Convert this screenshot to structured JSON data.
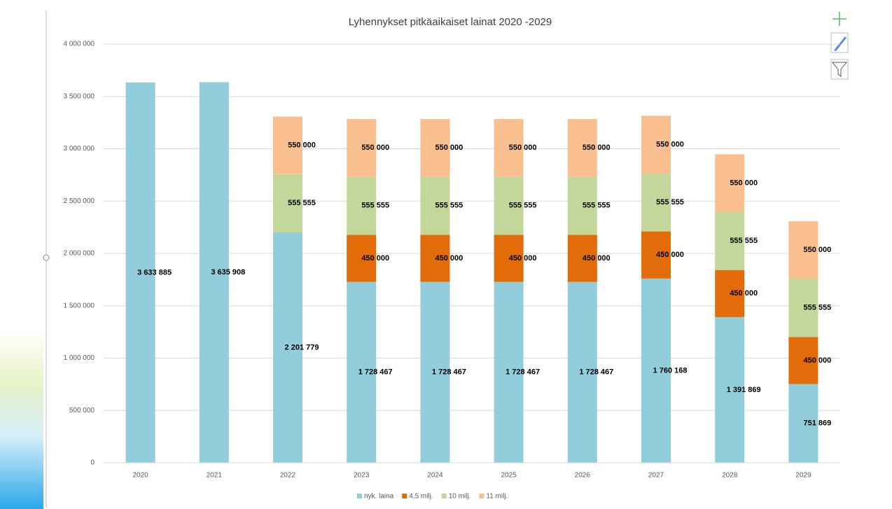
{
  "chart_data": {
    "type": "stacked_bar",
    "title": "Lyhennykset pitkäaikaiset lainat 2020 -2029",
    "categories": [
      "2020",
      "2021",
      "2022",
      "2023",
      "2024",
      "2025",
      "2026",
      "2027",
      "2028",
      "2029"
    ],
    "series": [
      {
        "name": "nyk. laina",
        "color": "#92cddc",
        "values": [
          3633885,
          3635908,
          2201779,
          1728467,
          1728467,
          1728467,
          1728467,
          1760168,
          1391869,
          751869
        ],
        "value_labels": [
          "3 633 885",
          "3 635 908",
          "2 201 779",
          "1 728 467",
          "1 728 467",
          "1 728 467",
          "1 728 467",
          "1 760 168",
          "1 391 869",
          "751 869"
        ]
      },
      {
        "name": "4,5 milj.",
        "color": "#e26b0a",
        "values": [
          null,
          null,
          null,
          450000,
          450000,
          450000,
          450000,
          450000,
          450000,
          450000
        ],
        "value_labels": [
          null,
          null,
          null,
          "450 000",
          "450 000",
          "450 000",
          "450 000",
          "450 000",
          "450 000",
          "450 000"
        ]
      },
      {
        "name": "10 milj.",
        "color": "#c4d79b",
        "values": [
          null,
          null,
          555555,
          555555,
          555555,
          555555,
          555555,
          555555,
          555555,
          555555
        ],
        "value_labels": [
          null,
          null,
          "555 555",
          "555 555",
          "555 555",
          "555 555",
          "555 555",
          "555 555",
          "555 555",
          "555 555"
        ]
      },
      {
        "name": "11 milj.",
        "color": "#fabf8f",
        "values": [
          null,
          null,
          550000,
          550000,
          550000,
          550000,
          550000,
          550000,
          550000,
          550000
        ],
        "value_labels": [
          null,
          null,
          "550 000",
          "550 000",
          "550 000",
          "550 000",
          "550 000",
          "550 000",
          "550 000",
          "550 000"
        ]
      }
    ],
    "ylim": [
      0,
      4000000
    ],
    "yticks": [
      0,
      {
        "value": 500000,
        "label": "500 000"
      },
      {
        "value": 1000000,
        "label": "1 000 000"
      },
      {
        "value": 1500000,
        "label": "1 500 000"
      },
      {
        "value": 2000000,
        "label": "2 000 000"
      },
      {
        "value": 2500000,
        "label": "2 500 000"
      },
      {
        "value": 3000000,
        "label": "3 000 000"
      },
      {
        "value": 3500000,
        "label": "3 500 000"
      },
      {
        "value": 4000000,
        "label": "4 000 000"
      }
    ],
    "grid": true,
    "legend": "bottom"
  }
}
